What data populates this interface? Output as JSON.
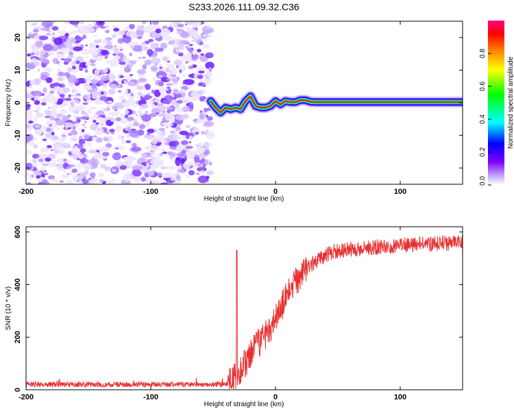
{
  "title": "S233.2026.111.09.32.C36",
  "chart_data": [
    {
      "type": "heatmap",
      "name": "spectrogram",
      "xlabel": "Height of straight line (km)",
      "ylabel": "Frequency (Hz)",
      "xlim": [
        -200,
        150
      ],
      "ylim": [
        -25,
        25
      ],
      "xticks": [
        -200,
        -100,
        0,
        100
      ],
      "yticks": [
        -20,
        -10,
        0,
        10,
        20
      ],
      "xtick_labels": [
        "-200",
        "-100",
        "0",
        "100"
      ],
      "ytick_labels": [
        "-20",
        "-10",
        "0",
        "10",
        "20"
      ],
      "noise_region_end_km": -52,
      "signal_track": {
        "x": [
          -52,
          -48,
          -44,
          -40,
          -36,
          -32,
          -28,
          -24,
          -20,
          -16,
          -12,
          -8,
          -4,
          0,
          4,
          8,
          12,
          16,
          20,
          24,
          28,
          32,
          150
        ],
        "freq": [
          0.5,
          -1.5,
          -3.0,
          -1.5,
          -2.0,
          -1.5,
          -2.0,
          0.5,
          2.0,
          -1.0,
          -1.5,
          -1.5,
          -1.0,
          0.5,
          -0.5,
          0.5,
          0.2,
          0.2,
          0.8,
          0.8,
          0.3,
          0.2,
          0.2
        ]
      },
      "colorbar": {
        "label": "Normalized spectral amplitude",
        "range": [
          0,
          1
        ],
        "ticks": [
          0.0,
          0.2,
          0.4,
          0.6,
          0.8
        ],
        "tick_labels": [
          "0.0",
          "0.2",
          "0.4",
          "0.6",
          "0.8"
        ],
        "colors": [
          "#ffffff",
          "#8000ff",
          "#0000ff",
          "#00ffff",
          "#00ff00",
          "#ffff00",
          "#ff8000",
          "#ff0000",
          "#ff0080"
        ]
      }
    },
    {
      "type": "line",
      "name": "snr",
      "xlabel": "Height of straight line (km)",
      "ylabel": "SNR (10 * v/v)",
      "xlim": [
        -200,
        150
      ],
      "ylim": [
        0,
        620
      ],
      "xticks": [
        -200,
        -100,
        0,
        100
      ],
      "yticks": [
        0,
        200,
        400,
        600
      ],
      "xtick_labels": [
        "-200",
        "-100",
        "0",
        "100"
      ],
      "ytick_labels": [
        "0",
        "200",
        "400",
        "600"
      ],
      "color": "#e83030",
      "series_trend": {
        "x": [
          -200,
          -40,
          -38,
          -30,
          -20,
          -10,
          0,
          10,
          20,
          30,
          40,
          50,
          100,
          150
        ],
        "y": [
          20,
          20,
          20,
          60,
          130,
          200,
          270,
          360,
          440,
          480,
          510,
          530,
          550,
          560
        ]
      },
      "noise_amplitude": 25,
      "spike": {
        "x": -31,
        "y": 530
      }
    }
  ]
}
